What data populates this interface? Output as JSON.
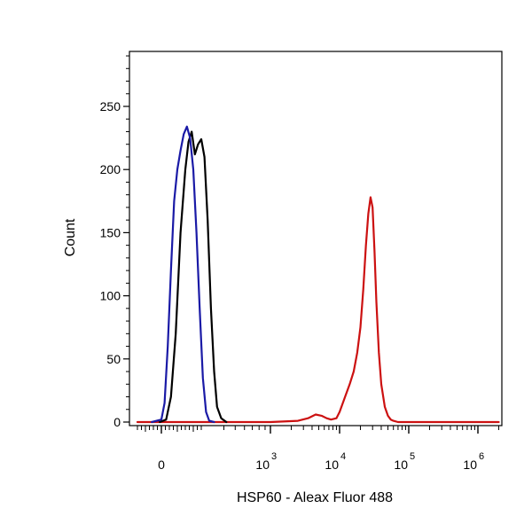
{
  "chart_data": {
    "type": "line",
    "xlabel": "HSP60 - Aleax Fluor 488",
    "ylabel": "Count",
    "x_scale": "biexponential",
    "xlim": [
      -200,
      2000000
    ],
    "ylim": [
      0,
      250
    ],
    "y_ticks": [
      {
        "value": 0,
        "label": "0"
      },
      {
        "value": 50,
        "label": "50"
      },
      {
        "value": 100,
        "label": "100"
      },
      {
        "value": 150,
        "label": "150"
      },
      {
        "value": 200,
        "label": "200"
      },
      {
        "value": 250,
        "label": "250"
      }
    ],
    "x_ticks": [
      {
        "value": 0,
        "label": "0",
        "base": "",
        "exp": ""
      },
      {
        "value": 1000,
        "label": "",
        "base": "10",
        "exp": "3"
      },
      {
        "value": 10000,
        "label": "",
        "base": "10",
        "exp": "4"
      },
      {
        "value": 100000,
        "label": "",
        "base": "10",
        "exp": "5"
      },
      {
        "value": 1000000,
        "label": "",
        "base": "10",
        "exp": "6"
      }
    ],
    "series": [
      {
        "color": "#1a1aa6",
        "x": [
          -60,
          0,
          20,
          40,
          60,
          80,
          100,
          120,
          140,
          160,
          180,
          200,
          220,
          240,
          260,
          280,
          300,
          330
        ],
        "y": [
          0,
          2,
          15,
          60,
          120,
          175,
          200,
          215,
          228,
          234,
          225,
          200,
          150,
          90,
          35,
          8,
          1,
          0
        ]
      },
      {
        "color": "#000000",
        "x": [
          -10,
          30,
          60,
          90,
          120,
          150,
          170,
          190,
          210,
          230,
          250,
          270,
          290,
          310,
          330,
          350,
          380,
          420
        ],
        "y": [
          0,
          2,
          20,
          70,
          150,
          200,
          222,
          230,
          212,
          220,
          224,
          210,
          160,
          90,
          40,
          12,
          3,
          0
        ]
      },
      {
        "color": "#cc1111",
        "x": [
          -150,
          1000,
          2500,
          3500,
          4500,
          5500,
          6500,
          7500,
          9000,
          10000,
          12000,
          14000,
          16000,
          18000,
          20000,
          22000,
          24000,
          26000,
          28000,
          30000,
          32000,
          34000,
          37000,
          40000,
          45000,
          50000,
          55000,
          60000,
          70000,
          80000,
          100000,
          300000,
          2000000
        ],
        "y": [
          0,
          0,
          1,
          3,
          6,
          5,
          3,
          2,
          3,
          8,
          20,
          30,
          40,
          55,
          75,
          105,
          140,
          165,
          178,
          170,
          135,
          95,
          55,
          30,
          12,
          5,
          2,
          1,
          0,
          0,
          0,
          0,
          0
        ]
      }
    ]
  }
}
